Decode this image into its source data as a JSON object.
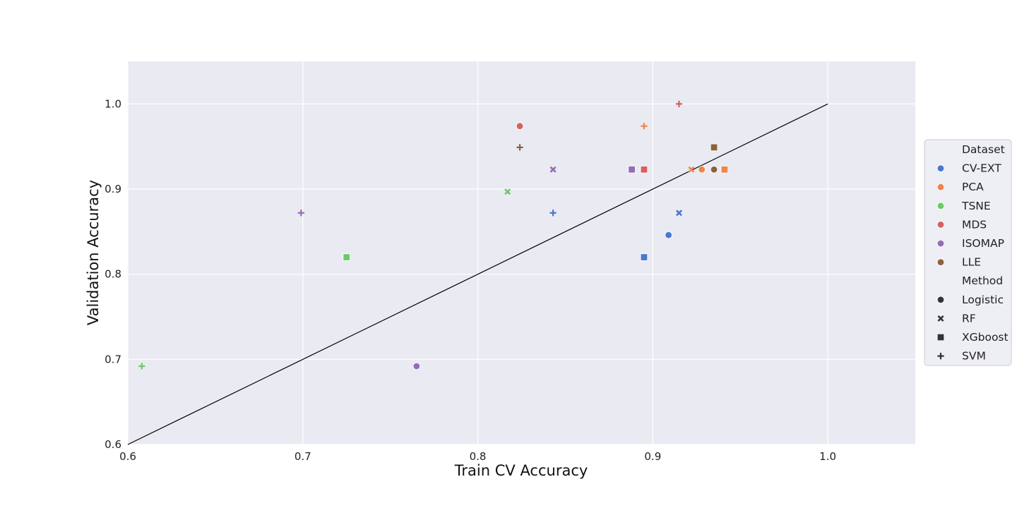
{
  "chart_data": {
    "type": "scatter",
    "xlabel": "Train CV Accuracy",
    "ylabel": "Validation Accuracy",
    "xlim": [
      0.6,
      1.05
    ],
    "ylim": [
      0.6,
      1.05
    ],
    "xticks": [
      "0.6",
      "0.7",
      "0.8",
      "0.9",
      "1.0"
    ],
    "yticks": [
      "0.6",
      "0.7",
      "0.8",
      "0.9",
      "1.0"
    ],
    "grid": true,
    "background": "#eaeaf2",
    "reference_line": {
      "from": [
        0.6,
        0.6
      ],
      "to": [
        1.0,
        1.0
      ],
      "color": "#000000"
    },
    "legend": {
      "placement": "right",
      "hue_title": "Dataset",
      "hue": [
        {
          "name": "CV-EXT",
          "color": "#4878d0"
        },
        {
          "name": "PCA",
          "color": "#ee854a"
        },
        {
          "name": "TSNE",
          "color": "#6acc64"
        },
        {
          "name": "MDS",
          "color": "#d65f5f"
        },
        {
          "name": "ISOMAP",
          "color": "#956cb4"
        },
        {
          "name": "LLE",
          "color": "#8c613c"
        }
      ],
      "style_title": "Method",
      "style": [
        {
          "name": "Logistic",
          "marker": "circle"
        },
        {
          "name": "RF",
          "marker": "x"
        },
        {
          "name": "XGboost",
          "marker": "square"
        },
        {
          "name": "SVM",
          "marker": "plus"
        }
      ]
    },
    "points": [
      {
        "dataset": "CV-EXT",
        "method": "Logistic",
        "x": 0.909,
        "y": 0.846
      },
      {
        "dataset": "CV-EXT",
        "method": "RF",
        "x": 0.915,
        "y": 0.872
      },
      {
        "dataset": "CV-EXT",
        "method": "XGboost",
        "x": 0.895,
        "y": 0.82
      },
      {
        "dataset": "CV-EXT",
        "method": "SVM",
        "x": 0.843,
        "y": 0.872
      },
      {
        "dataset": "PCA",
        "method": "Logistic",
        "x": 0.928,
        "y": 0.923
      },
      {
        "dataset": "PCA",
        "method": "RF",
        "x": 0.922,
        "y": 0.923
      },
      {
        "dataset": "PCA",
        "method": "XGboost",
        "x": 0.941,
        "y": 0.923
      },
      {
        "dataset": "PCA",
        "method": "SVM",
        "x": 0.895,
        "y": 0.974
      },
      {
        "dataset": "TSNE",
        "method": "RF",
        "x": 0.817,
        "y": 0.897
      },
      {
        "dataset": "TSNE",
        "method": "XGboost",
        "x": 0.725,
        "y": 0.82
      },
      {
        "dataset": "TSNE",
        "method": "SVM",
        "x": 0.608,
        "y": 0.692
      },
      {
        "dataset": "MDS",
        "method": "Logistic",
        "x": 0.824,
        "y": 0.974
      },
      {
        "dataset": "MDS",
        "method": "XGboost",
        "x": 0.895,
        "y": 0.923
      },
      {
        "dataset": "MDS",
        "method": "SVM",
        "x": 0.915,
        "y": 1.0
      },
      {
        "dataset": "ISOMAP",
        "method": "Logistic",
        "x": 0.765,
        "y": 0.692
      },
      {
        "dataset": "ISOMAP",
        "method": "RF",
        "x": 0.843,
        "y": 0.923
      },
      {
        "dataset": "ISOMAP",
        "method": "XGboost",
        "x": 0.888,
        "y": 0.923
      },
      {
        "dataset": "ISOMAP",
        "method": "SVM",
        "x": 0.699,
        "y": 0.872
      },
      {
        "dataset": "LLE",
        "method": "Logistic",
        "x": 0.935,
        "y": 0.923
      },
      {
        "dataset": "LLE",
        "method": "XGboost",
        "x": 0.935,
        "y": 0.949
      },
      {
        "dataset": "LLE",
        "method": "SVM",
        "x": 0.824,
        "y": 0.949
      }
    ]
  }
}
